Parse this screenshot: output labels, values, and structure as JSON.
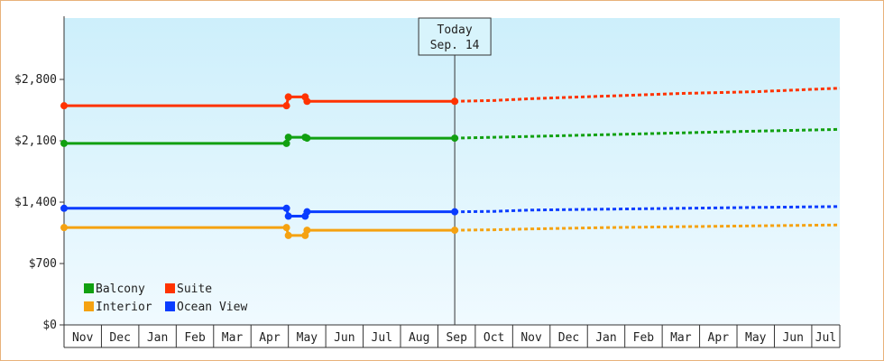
{
  "chart_data": {
    "type": "line",
    "title": "",
    "xlabel": "",
    "ylabel": "",
    "ylim": [
      0,
      3500
    ],
    "yticks": [
      0,
      700,
      1400,
      2100,
      2800
    ],
    "ytick_labels": [
      "$0",
      "$700",
      "$1,400",
      "$2,100",
      "$2,800"
    ],
    "xlim_months": [
      0,
      20.75
    ],
    "month_labels": [
      "Nov",
      "Dec",
      "Jan",
      "Feb",
      "Mar",
      "Apr",
      "May",
      "Jun",
      "Jul",
      "Aug",
      "Sep",
      "Oct",
      "Nov",
      "Dec",
      "Jan",
      "Feb",
      "Mar",
      "Apr",
      "May",
      "Jun",
      "Jul"
    ],
    "today": {
      "label": "Today",
      "date": "Sep. 14",
      "x": 10.45
    },
    "grid": false,
    "legend_position": "bottom-left",
    "colors": {
      "plot_bg_top": "#cdeffb",
      "plot_bg_bottom": "#f0faff",
      "axis": "#333333",
      "frame": "#e8b27a"
    },
    "series": [
      {
        "name": "Balcony",
        "color": "#11a011",
        "history": [
          [
            0,
            2070
          ],
          [
            5.95,
            2070
          ],
          [
            6.0,
            2140
          ],
          [
            6.45,
            2140
          ],
          [
            6.5,
            2130
          ],
          [
            10.45,
            2130
          ]
        ],
        "history_markers": [
          [
            0,
            2070
          ],
          [
            5.95,
            2070
          ],
          [
            6.0,
            2140
          ],
          [
            6.45,
            2140
          ],
          [
            6.5,
            2130
          ],
          [
            10.45,
            2130
          ]
        ],
        "forecast": [
          [
            10.45,
            2130
          ],
          [
            11.5,
            2140
          ],
          [
            12.5,
            2150
          ],
          [
            14.5,
            2170
          ],
          [
            16.5,
            2190
          ],
          [
            18.5,
            2210
          ],
          [
            20.75,
            2230
          ]
        ]
      },
      {
        "name": "Suite",
        "color": "#ff3300",
        "history": [
          [
            0,
            2500
          ],
          [
            5.95,
            2500
          ],
          [
            6.0,
            2600
          ],
          [
            6.45,
            2600
          ],
          [
            6.5,
            2550
          ],
          [
            10.45,
            2550
          ]
        ],
        "history_markers": [
          [
            0,
            2500
          ],
          [
            5.95,
            2500
          ],
          [
            6.0,
            2600
          ],
          [
            6.45,
            2600
          ],
          [
            6.5,
            2550
          ],
          [
            10.45,
            2550
          ]
        ],
        "forecast": [
          [
            10.45,
            2550
          ],
          [
            11.5,
            2560
          ],
          [
            12.5,
            2580
          ],
          [
            14.5,
            2610
          ],
          [
            16.5,
            2640
          ],
          [
            18.5,
            2660
          ],
          [
            20.75,
            2700
          ]
        ]
      },
      {
        "name": "Interior",
        "color": "#f5a211",
        "history": [
          [
            0,
            1110
          ],
          [
            5.95,
            1110
          ],
          [
            6.0,
            1020
          ],
          [
            6.45,
            1020
          ],
          [
            6.5,
            1080
          ],
          [
            10.45,
            1080
          ]
        ],
        "history_markers": [
          [
            0,
            1110
          ],
          [
            5.95,
            1110
          ],
          [
            6.0,
            1020
          ],
          [
            6.45,
            1020
          ],
          [
            6.5,
            1080
          ],
          [
            10.45,
            1080
          ]
        ],
        "forecast": [
          [
            10.45,
            1080
          ],
          [
            11.5,
            1085
          ],
          [
            12.5,
            1095
          ],
          [
            14.5,
            1110
          ],
          [
            16.5,
            1120
          ],
          [
            18.5,
            1130
          ],
          [
            20.75,
            1140
          ]
        ]
      },
      {
        "name": "Ocean View",
        "color": "#0a3cff",
        "history": [
          [
            0,
            1330
          ],
          [
            5.95,
            1330
          ],
          [
            6.0,
            1240
          ],
          [
            6.45,
            1240
          ],
          [
            6.5,
            1290
          ],
          [
            10.45,
            1290
          ]
        ],
        "history_markers": [
          [
            0,
            1330
          ],
          [
            5.95,
            1330
          ],
          [
            6.0,
            1240
          ],
          [
            6.45,
            1240
          ],
          [
            6.5,
            1290
          ],
          [
            10.45,
            1290
          ]
        ],
        "forecast": [
          [
            10.45,
            1290
          ],
          [
            11.5,
            1295
          ],
          [
            12.5,
            1310
          ],
          [
            14.5,
            1320
          ],
          [
            16.5,
            1330
          ],
          [
            18.5,
            1340
          ],
          [
            20.75,
            1350
          ]
        ]
      }
    ],
    "legend": [
      {
        "name": "Balcony",
        "color": "#11a011"
      },
      {
        "name": "Suite",
        "color": "#ff3300"
      },
      {
        "name": "Interior",
        "color": "#f5a211"
      },
      {
        "name": "Ocean View",
        "color": "#0a3cff"
      }
    ]
  }
}
